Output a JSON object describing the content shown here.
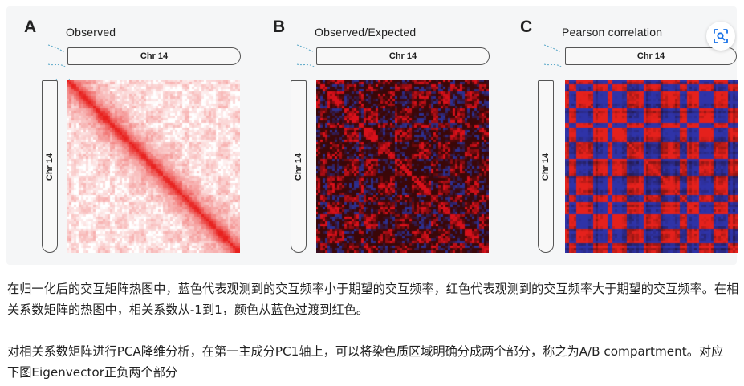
{
  "figure": {
    "panels": [
      {
        "letter": "A",
        "title": "Observed",
        "chr_top": "Chr 14",
        "chr_left": "Chr 14",
        "map": "observed"
      },
      {
        "letter": "B",
        "title": "Observed/Expected",
        "chr_top": "Chr 14",
        "chr_left": "Chr 14",
        "map": "oe"
      },
      {
        "letter": "C",
        "title": "Pearson correlation",
        "chr_top": "Chr 14",
        "chr_left": "Chr 14",
        "map": "pearson"
      }
    ],
    "colors": {
      "observed_high": "#e8211e",
      "observed_low": "#ffffff",
      "oe_high": "#d8101a",
      "oe_low": "#2c2f8f",
      "oe_background": "#3a0708",
      "pearson_high": "#e5211c",
      "pearson_low": "#2f33a8",
      "pearson_mid": "#1a0505"
    }
  },
  "lens_button": {
    "icon": "visual-search-icon"
  },
  "paragraphs": [
    "在归一化后的交互矩阵热图中，蓝色代表观测到的交互频率小于期望的交互频率，红色代表观测到的交互频率大于期望的交互频率。在相关系数矩阵的热图中，相关系数从-1到1，颜色从蓝色过渡到红色。",
    "对相关系数矩阵进行PCA降维分析，在第一主成分PC1轴上，可以将染色质区域明确分成两个部分，称之为A/B compartment。对应下图Eigenvector正负两个部分"
  ]
}
